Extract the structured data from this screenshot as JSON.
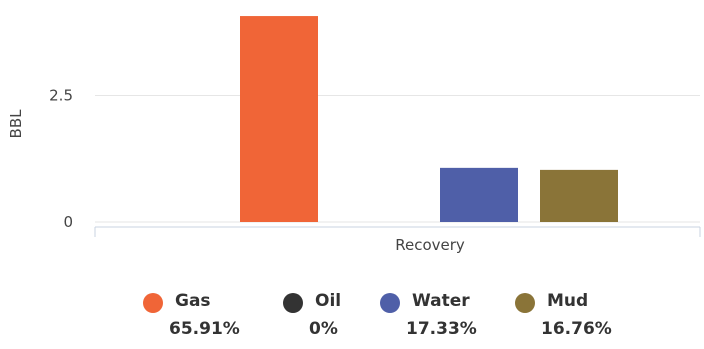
{
  "chart_data": {
    "type": "bar",
    "ylabel": "BBL",
    "xlabel": "",
    "categories": [
      "Recovery"
    ],
    "y_ticks": [
      "0",
      "2.5"
    ],
    "ylim": [
      0,
      4.2
    ],
    "grid": true,
    "legend_placement": "bottom",
    "series": [
      {
        "name": "Gas",
        "values": [
          4.07
        ],
        "color": "#f06537",
        "percent": "65.91%"
      },
      {
        "name": "Oil",
        "values": [
          0
        ],
        "color": "#333333",
        "percent": "0%"
      },
      {
        "name": "Water",
        "values": [
          1.07
        ],
        "color": "#4f5fa8",
        "percent": "17.33%"
      },
      {
        "name": "Mud",
        "values": [
          1.03
        ],
        "color": "#8a7438",
        "percent": "16.76%"
      }
    ]
  }
}
